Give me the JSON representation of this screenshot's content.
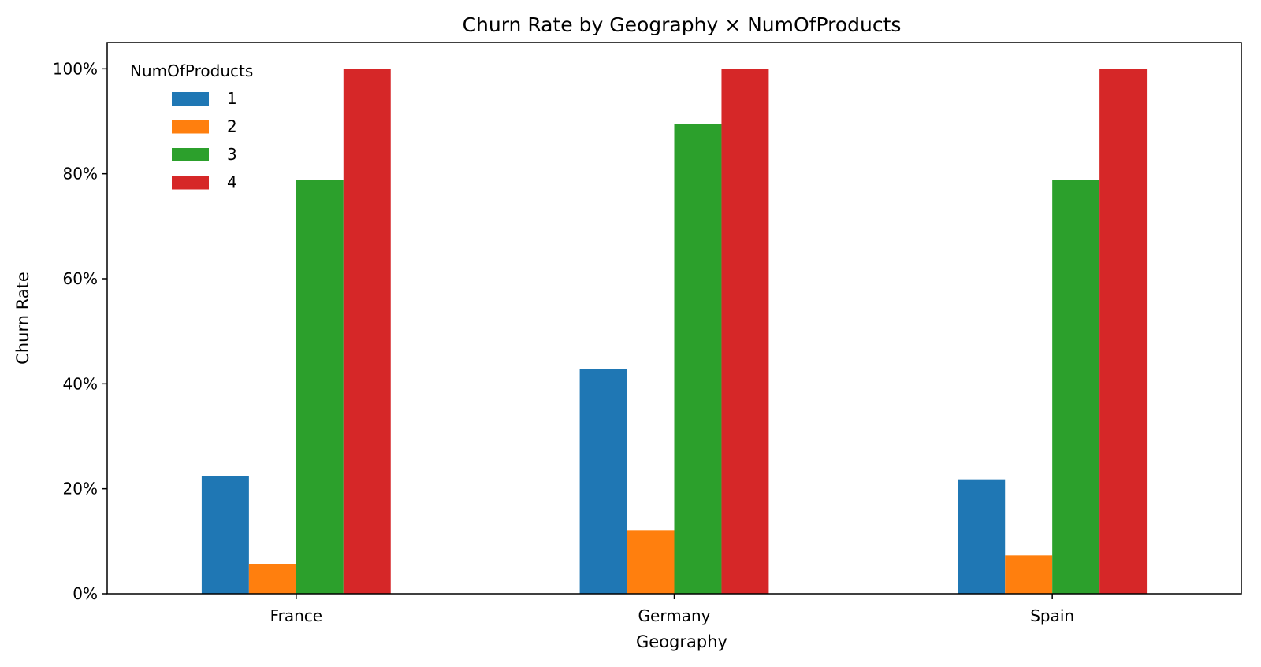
{
  "chart_data": {
    "type": "bar",
    "title": "Churn Rate by Geography × NumOfProducts",
    "xlabel": "Geography",
    "ylabel": "Churn Rate",
    "categories": [
      "France",
      "Germany",
      "Spain"
    ],
    "series": [
      {
        "name": "1",
        "color": "#1f77b4",
        "values": [
          0.225,
          0.429,
          0.218
        ]
      },
      {
        "name": "2",
        "color": "#ff7f0e",
        "values": [
          0.057,
          0.121,
          0.073
        ]
      },
      {
        "name": "3",
        "color": "#2ca02c",
        "values": [
          0.788,
          0.895,
          0.788
        ]
      },
      {
        "name": "4",
        "color": "#d62728",
        "values": [
          1.0,
          1.0,
          1.0
        ]
      }
    ],
    "ylim": [
      0,
      1.05
    ],
    "yticks": [
      0,
      0.2,
      0.4,
      0.6,
      0.8,
      1.0
    ],
    "ytick_labels": [
      "0%",
      "20%",
      "40%",
      "60%",
      "80%",
      "100%"
    ],
    "legend": {
      "title": "NumOfProducts",
      "placement": "upper-left",
      "frame": false
    },
    "grid": false
  }
}
